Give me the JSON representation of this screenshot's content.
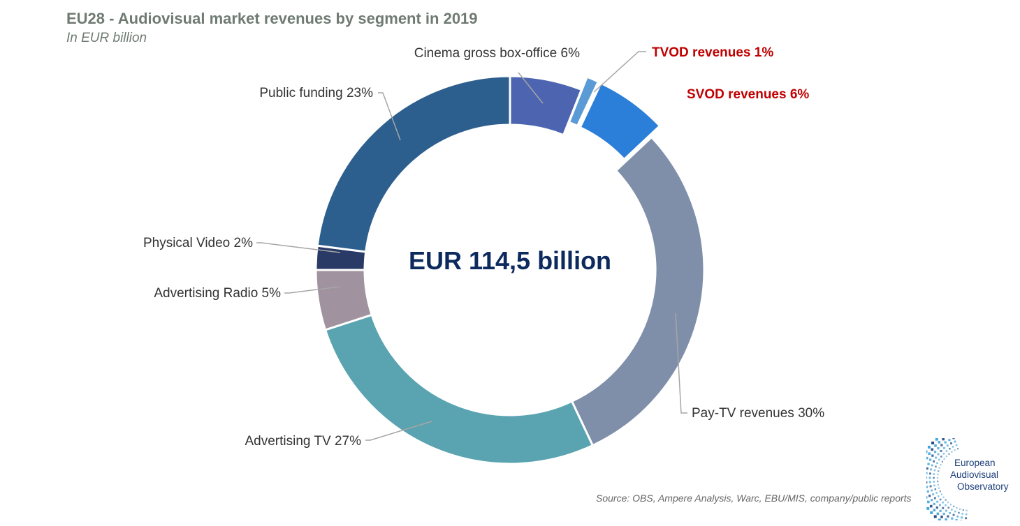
{
  "header": {
    "title": "EU28 - Audiovisual market revenues by segment in 2019",
    "subtitle": "In EUR billion"
  },
  "chart_data": {
    "type": "pie",
    "variant": "donut",
    "title": "EU28 - Audiovisual market revenues by segment in 2019",
    "subtitle": "In EUR billion",
    "center_label": "EUR 114,5 billion",
    "unit": "%",
    "slices": [
      {
        "name": "Cinema gross box-office",
        "value": 6,
        "label": "Cinema gross box-office  6%",
        "color": "#4d65b0",
        "highlight": false,
        "exploded": false
      },
      {
        "name": "TVOD revenues",
        "value": 1,
        "label": "TVOD revenues 1%",
        "color": "#5b9bd5",
        "highlight": true,
        "exploded": true
      },
      {
        "name": "SVOD revenues",
        "value": 6,
        "label": "SVOD revenues 6%",
        "color": "#2b7fd8",
        "highlight": true,
        "exploded": true
      },
      {
        "name": "Pay-TV revenues",
        "value": 30,
        "label": "Pay-TV revenues 30%",
        "color": "#7f8fa9",
        "highlight": false,
        "exploded": false
      },
      {
        "name": "Advertising TV",
        "value": 27,
        "label": "Advertising TV 27%",
        "color": "#5aa3b0",
        "highlight": false,
        "exploded": false
      },
      {
        "name": "Advertising Radio",
        "value": 5,
        "label": "Advertising Radio 5%",
        "color": "#a0929f",
        "highlight": false,
        "exploded": false
      },
      {
        "name": "Physical Video",
        "value": 2,
        "label": "Physical Video 2%",
        "color": "#2a3a66",
        "highlight": false,
        "exploded": false
      },
      {
        "name": "Public funding",
        "value": 23,
        "label": "Public funding 23%",
        "color": "#2c5f8d",
        "highlight": false,
        "exploded": false
      }
    ],
    "highlight_color": "#c00000"
  },
  "footer": {
    "source": "Source: OBS, Ampere Analysis, Warc, EBU/MIS, company/public reports"
  },
  "logo": {
    "line1": "European",
    "line2": "Audiovisual",
    "line3": "Observatory",
    "colors": [
      "#3aa0d8",
      "#1c3f7a"
    ]
  }
}
